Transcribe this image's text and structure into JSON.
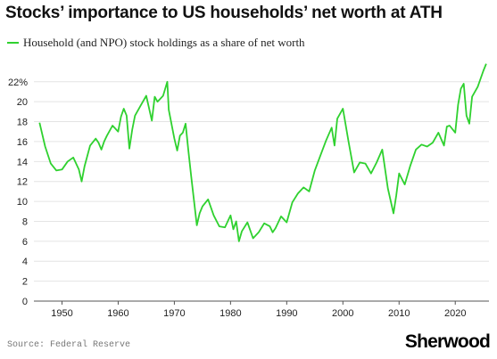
{
  "chart_data": {
    "type": "line",
    "title": "Stocks’ importance to US households’ net worth at ATH",
    "xlabel": "",
    "ylabel": "",
    "xlim": [
      1945,
      2026
    ],
    "ylim": [
      0,
      23.5
    ],
    "yticks": [
      0,
      2,
      4,
      6,
      8,
      10,
      12,
      14,
      16,
      18,
      20,
      22
    ],
    "ytick_labels": [
      "0",
      "2",
      "4",
      "6",
      "8",
      "10",
      "12",
      "14",
      "16",
      "18",
      "20",
      "22%"
    ],
    "xticks": [
      1950,
      1960,
      1970,
      1980,
      1990,
      2000,
      2010,
      2020
    ],
    "xtick_labels": [
      "1950",
      "1960",
      "1970",
      "1980",
      "1990",
      "2000",
      "2010",
      "2020"
    ],
    "grid": "horizontal",
    "legend_position": "top-left",
    "series": [
      {
        "name": "Household (and NPO) stock holdings as a share of net worth",
        "color": "#2fd12f",
        "x": [
          1946,
          1947,
          1948,
          1949,
          1950,
          1951,
          1952,
          1953,
          1953.5,
          1954,
          1955,
          1956,
          1956.5,
          1957,
          1957.5,
          1958,
          1959,
          1960,
          1960.5,
          1961,
          1961.5,
          1962,
          1962.5,
          1963,
          1964,
          1965,
          1966,
          1966.5,
          1967,
          1968,
          1968.75,
          1969,
          1970,
          1970.5,
          1971,
          1971.5,
          1972,
          1972.5,
          1973,
          1974,
          1974.5,
          1975,
          1976,
          1977,
          1978,
          1979,
          1980,
          1980.5,
          1981,
          1981.5,
          1982,
          1983,
          1984,
          1985,
          1986,
          1987,
          1987.5,
          1988,
          1989,
          1990,
          1991,
          1992,
          1993,
          1994,
          1995,
          1996,
          1997,
          1998,
          1998.5,
          1999,
          2000,
          2001,
          2002,
          2003,
          2004,
          2005,
          2006,
          2007,
          2008,
          2009,
          2009.5,
          2010,
          2011,
          2012,
          2013,
          2014,
          2015,
          2016,
          2017,
          2018,
          2018.5,
          2019,
          2020,
          2020.5,
          2021,
          2021.5,
          2022,
          2022.5,
          2023,
          2024,
          2025,
          2025.5
        ],
        "values": [
          17.9,
          15.5,
          13.8,
          13.1,
          13.2,
          14.0,
          14.4,
          13.2,
          12.0,
          13.5,
          15.6,
          16.3,
          15.9,
          15.2,
          16.0,
          16.6,
          17.6,
          17.0,
          18.5,
          19.3,
          18.6,
          15.3,
          17.2,
          18.6,
          19.6,
          20.6,
          18.1,
          20.5,
          20.0,
          20.6,
          22.0,
          19.2,
          16.3,
          15.1,
          16.6,
          16.9,
          17.8,
          15.1,
          12.5,
          7.6,
          8.8,
          9.5,
          10.2,
          8.6,
          7.5,
          7.4,
          8.6,
          7.2,
          8.0,
          6.0,
          7.0,
          7.9,
          6.3,
          6.9,
          7.8,
          7.5,
          6.9,
          7.3,
          8.5,
          7.9,
          9.9,
          10.8,
          11.4,
          11.0,
          13.1,
          14.6,
          16.1,
          17.4,
          15.6,
          18.3,
          19.3,
          16.0,
          12.9,
          13.9,
          13.8,
          12.8,
          13.9,
          15.2,
          11.3,
          8.8,
          10.6,
          12.8,
          11.7,
          13.6,
          15.2,
          15.7,
          15.5,
          15.9,
          16.9,
          15.6,
          17.5,
          17.6,
          16.9,
          19.7,
          21.3,
          21.8,
          18.6,
          17.8,
          20.5,
          21.5,
          23.1,
          23.8
        ]
      }
    ]
  },
  "source_text": "Source: Federal Reserve",
  "brand": "Sherwood"
}
